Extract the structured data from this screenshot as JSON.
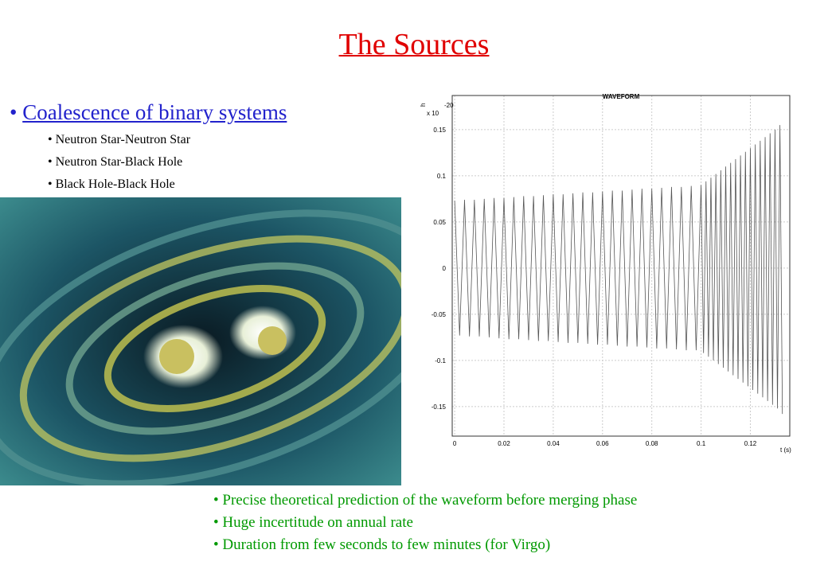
{
  "slide": {
    "title": "The Sources",
    "bullet": "Coalescence  of binary systems",
    "sub_bullets": [
      "Neutron Star-Neutron Star",
      "Neutron Star-Black Hole",
      "Black Hole-Black Hole"
    ],
    "notes": [
      "Precise theoretical prediction of the waveform before merging phase",
      "Huge incertitude on annual rate",
      "Duration from few seconds to few minutes (for Virgo)"
    ]
  },
  "chart_data": {
    "type": "line",
    "title": "WAVEFORM",
    "x_label": "t (s)",
    "y_label": "h",
    "y_scale_label": "x 10",
    "y_scale_exponent": "-20",
    "color": "#555555",
    "grid": true,
    "xlim": [
      -0.001,
      0.136
    ],
    "ylim": [
      -0.182,
      0.187
    ],
    "xticks": [
      0,
      0.02,
      0.04,
      0.06,
      0.08,
      0.1,
      0.12
    ],
    "yticks": [
      0.15,
      0.1,
      0.05,
      0,
      -0.05,
      -0.1,
      -0.15
    ],
    "x": [
      0,
      0.002,
      0.004,
      0.006,
      0.008,
      0.01,
      0.012,
      0.014,
      0.016,
      0.018,
      0.02,
      0.022,
      0.024,
      0.026,
      0.028,
      0.03,
      0.032,
      0.034,
      0.036,
      0.038,
      0.04,
      0.042,
      0.044,
      0.046,
      0.048,
      0.05,
      0.052,
      0.054,
      0.056,
      0.058,
      0.06,
      0.062,
      0.064,
      0.066,
      0.068,
      0.07,
      0.072,
      0.074,
      0.076,
      0.078,
      0.08,
      0.082,
      0.084,
      0.086,
      0.088,
      0.09,
      0.092,
      0.094,
      0.096,
      0.098,
      0.1,
      0.101,
      0.102,
      0.103,
      0.104,
      0.105,
      0.106,
      0.107,
      0.108,
      0.109,
      0.11,
      0.111,
      0.112,
      0.113,
      0.114,
      0.115,
      0.116,
      0.117,
      0.118,
      0.119,
      0.12,
      0.121,
      0.122,
      0.123,
      0.124,
      0.125,
      0.126,
      0.127,
      0.128,
      0.129,
      0.13,
      0.131,
      0.132,
      0.133
    ],
    "values": [
      0.073,
      -0.073,
      0.074,
      -0.074,
      0.074,
      -0.074,
      0.075,
      -0.075,
      0.076,
      -0.076,
      0.076,
      -0.077,
      0.077,
      -0.077,
      0.078,
      -0.078,
      0.078,
      -0.079,
      0.079,
      -0.079,
      0.08,
      -0.08,
      0.08,
      -0.081,
      0.081,
      -0.081,
      0.082,
      -0.082,
      0.082,
      -0.083,
      0.083,
      -0.083,
      0.084,
      -0.084,
      0.084,
      -0.085,
      0.085,
      -0.085,
      0.086,
      -0.086,
      0.086,
      -0.087,
      0.087,
      -0.087,
      0.088,
      -0.088,
      0.088,
      -0.089,
      0.089,
      -0.089,
      0.09,
      -0.092,
      0.094,
      -0.096,
      0.098,
      -0.1,
      0.102,
      -0.104,
      0.106,
      -0.108,
      0.11,
      -0.112,
      0.114,
      -0.116,
      0.118,
      -0.12,
      0.122,
      -0.124,
      0.126,
      -0.128,
      0.13,
      -0.132,
      0.134,
      -0.136,
      0.138,
      -0.14,
      0.142,
      -0.144,
      0.146,
      -0.148,
      0.15,
      -0.152,
      0.155,
      -0.158
    ]
  }
}
